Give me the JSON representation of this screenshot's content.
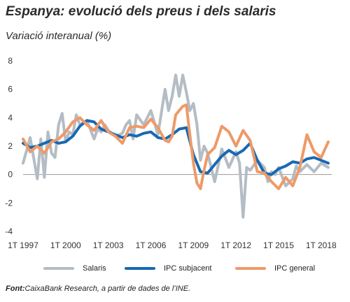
{
  "source_label": "Font:",
  "source_text": "CaixaBank Research, a partir de dades de l’INE.",
  "colors": {
    "salaris": "#b4bcc4",
    "ipc_subjacent": "#1769b3",
    "ipc_general": "#ee9a68",
    "gridline": "#9a9a9a"
  },
  "chart_data": {
    "type": "line",
    "title": "Espanya: evolució dels preus i dels salaris",
    "subtitle": "Variació interanual (%)",
    "ylim": [
      -4,
      8
    ],
    "yticks": [
      -4,
      -2,
      0,
      2,
      4,
      6,
      8
    ],
    "x_tick_labels": [
      "1T 1997",
      "1T 2000",
      "1T 2003",
      "1T 2006",
      "1T 2009",
      "1T 2012",
      "1T 2015",
      "1T 2018"
    ],
    "x_ticks": [
      1997,
      2000,
      2003,
      2006,
      2009,
      2012,
      2015,
      2018
    ],
    "xlim": [
      1997,
      2018.75
    ],
    "grid": false,
    "legend_position": "bottom",
    "series": [
      {
        "name": "Salaris",
        "color_key": "salaris",
        "x": [
          1997,
          1997.5,
          1998,
          1998.25,
          1998.5,
          1998.75,
          1999,
          1999.25,
          1999.5,
          1999.75,
          2000,
          2000.25,
          2000.5,
          2000.75,
          2001,
          2001.5,
          2002,
          2002.25,
          2002.5,
          2002.75,
          2003,
          2003.5,
          2004,
          2004.25,
          2004.5,
          2004.75,
          2005,
          2005.5,
          2006,
          2006.5,
          2007,
          2007.25,
          2007.5,
          2007.75,
          2008,
          2008.25,
          2008.5,
          2008.75,
          2009,
          2009.25,
          2009.5,
          2009.75,
          2010,
          2010.5,
          2011,
          2011.5,
          2012,
          2012.25,
          2012.5,
          2012.75,
          2013,
          2013.5,
          2014,
          2014.25,
          2014.5,
          2014.75,
          2015,
          2015.5,
          2016,
          2016.25,
          2016.5,
          2017,
          2017.5,
          2018,
          2018.5
        ],
        "y": [
          0.8,
          2.6,
          -0.3,
          2.5,
          -0.2,
          3.0,
          1.5,
          1.2,
          3.5,
          4.3,
          2.3,
          3.0,
          2.8,
          4.2,
          3.5,
          3.8,
          2.5,
          3.2,
          3.0,
          3.5,
          3.1,
          2.7,
          2.9,
          3.5,
          3.8,
          2.5,
          4.2,
          3.5,
          4.5,
          2.8,
          6.0,
          4.5,
          5.5,
          7.0,
          5.5,
          7.0,
          5.8,
          4.5,
          5.0,
          3.5,
          1.0,
          2.0,
          1.5,
          -0.5,
          1.8,
          0.5,
          1.6,
          0.8,
          -3.0,
          0.5,
          0.3,
          1.0,
          0.5,
          -0.5,
          0.2,
          0.0,
          0.5,
          -0.8,
          -0.3,
          0.6,
          0.2,
          0.7,
          0.2,
          0.8,
          0.5
        ]
      },
      {
        "name": "IPC subjacent",
        "color_key": "ipc_subjacent",
        "x": [
          1997,
          1997.5,
          1998,
          1998.5,
          1999,
          1999.5,
          2000,
          2000.5,
          2001,
          2001.5,
          2002,
          2002.5,
          2003,
          2003.5,
          2004,
          2004.5,
          2005,
          2005.5,
          2006,
          2006.5,
          2007,
          2007.5,
          2008,
          2008.5,
          2009,
          2009.5,
          2010,
          2010.5,
          2011,
          2011.5,
          2012,
          2012.5,
          2013,
          2013.5,
          2014,
          2014.5,
          2015,
          2015.5,
          2016,
          2016.5,
          2017,
          2017.5,
          2018,
          2018.5
        ],
        "y": [
          2.2,
          1.9,
          2.0,
          2.2,
          2.4,
          2.2,
          2.3,
          2.7,
          3.4,
          3.8,
          3.7,
          3.2,
          3.0,
          2.8,
          2.6,
          2.8,
          2.7,
          2.9,
          3.0,
          2.6,
          2.5,
          2.8,
          3.2,
          3.3,
          1.4,
          0.2,
          0.1,
          0.7,
          1.3,
          1.7,
          1.4,
          1.7,
          2.2,
          1.0,
          0.1,
          0.0,
          0.4,
          0.6,
          0.9,
          0.8,
          1.1,
          1.2,
          1.0,
          0.8
        ]
      },
      {
        "name": "IPC general",
        "color_key": "ipc_general",
        "x": [
          1997,
          1997.5,
          1998,
          1998.5,
          1999,
          1999.5,
          2000,
          2000.5,
          2001,
          2001.5,
          2002,
          2002.5,
          2003,
          2003.5,
          2004,
          2004.5,
          2005,
          2005.5,
          2006,
          2006.5,
          2007,
          2007.25,
          2007.5,
          2007.75,
          2008,
          2008.25,
          2008.5,
          2008.75,
          2009,
          2009.25,
          2009.5,
          2009.75,
          2010,
          2010.5,
          2011,
          2011.5,
          2012,
          2012.5,
          2013,
          2013.5,
          2014,
          2014.5,
          2015,
          2015.5,
          2016,
          2016.5,
          2017,
          2017.5,
          2018,
          2018.5
        ],
        "y": [
          2.5,
          1.6,
          2.0,
          1.5,
          2.3,
          2.5,
          3.0,
          3.7,
          4.0,
          3.5,
          3.1,
          3.8,
          3.0,
          2.7,
          2.2,
          3.3,
          3.4,
          3.3,
          3.9,
          3.3,
          2.4,
          2.3,
          2.7,
          4.2,
          4.5,
          4.8,
          4.9,
          2.8,
          0.8,
          -0.6,
          -1.0,
          0.3,
          1.4,
          1.9,
          3.4,
          3.0,
          2.0,
          3.1,
          2.4,
          0.2,
          0.1,
          -0.5,
          -1.0,
          -0.2,
          -0.8,
          0.5,
          2.8,
          1.6,
          1.2,
          2.3
        ]
      }
    ]
  }
}
